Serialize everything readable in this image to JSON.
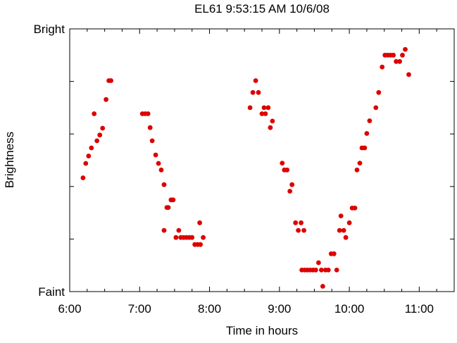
{
  "chart_data": {
    "type": "scatter",
    "title": "EL61 9:53:15 AM 10/6/08",
    "xlabel": "Time in hours",
    "ylabel": "Brightness",
    "x_unit": "hours",
    "xlim": [
      6.0,
      11.5
    ],
    "ylim": [
      0,
      1
    ],
    "x_ticks": [
      {
        "value": 6.0,
        "label": "6:00"
      },
      {
        "value": 7.0,
        "label": "7:00"
      },
      {
        "value": 8.0,
        "label": "8:00"
      },
      {
        "value": 9.0,
        "label": "9:00"
      },
      {
        "value": 10.0,
        "label": "10:00"
      },
      {
        "value": 11.0,
        "label": "11:00"
      }
    ],
    "x_minor_step": 0.25,
    "y_tick_labels": [
      {
        "value": 1,
        "label": "Bright"
      },
      {
        "value": 0,
        "label": "Faint"
      }
    ],
    "y_minor_ticks": [
      0.2,
      0.4,
      0.6,
      0.8
    ],
    "grid": false,
    "marker_color": "#dd0000",
    "points": [
      [
        6.19,
        0.433
      ],
      [
        6.23,
        0.488
      ],
      [
        6.27,
        0.516
      ],
      [
        6.31,
        0.547
      ],
      [
        6.35,
        0.677
      ],
      [
        6.39,
        0.574
      ],
      [
        6.43,
        0.596
      ],
      [
        6.47,
        0.622
      ],
      [
        6.52,
        0.731
      ],
      [
        6.56,
        0.803
      ],
      [
        6.59,
        0.803
      ],
      [
        7.04,
        0.677
      ],
      [
        7.08,
        0.677
      ],
      [
        7.12,
        0.677
      ],
      [
        7.15,
        0.624
      ],
      [
        7.18,
        0.574
      ],
      [
        7.23,
        0.52
      ],
      [
        7.27,
        0.488
      ],
      [
        7.31,
        0.463
      ],
      [
        7.35,
        0.407
      ],
      [
        7.39,
        0.32
      ],
      [
        7.41,
        0.32
      ],
      [
        7.45,
        0.349
      ],
      [
        7.48,
        0.349
      ],
      [
        7.35,
        0.233
      ],
      [
        7.52,
        0.206
      ],
      [
        7.56,
        0.233
      ],
      [
        7.59,
        0.206
      ],
      [
        7.63,
        0.206
      ],
      [
        7.67,
        0.206
      ],
      [
        7.71,
        0.206
      ],
      [
        7.75,
        0.206
      ],
      [
        7.79,
        0.179
      ],
      [
        7.83,
        0.179
      ],
      [
        7.87,
        0.179
      ],
      [
        7.86,
        0.262
      ],
      [
        7.91,
        0.206
      ],
      [
        8.58,
        0.7
      ],
      [
        8.62,
        0.758
      ],
      [
        8.66,
        0.803
      ],
      [
        8.7,
        0.758
      ],
      [
        8.75,
        0.677
      ],
      [
        8.78,
        0.7
      ],
      [
        8.8,
        0.677
      ],
      [
        8.84,
        0.7
      ],
      [
        8.87,
        0.624
      ],
      [
        8.9,
        0.649
      ],
      [
        9.04,
        0.489
      ],
      [
        9.07,
        0.463
      ],
      [
        9.11,
        0.463
      ],
      [
        9.15,
        0.382
      ],
      [
        9.18,
        0.407
      ],
      [
        9.23,
        0.262
      ],
      [
        9.27,
        0.233
      ],
      [
        9.31,
        0.262
      ],
      [
        9.35,
        0.233
      ],
      [
        9.32,
        0.082
      ],
      [
        9.36,
        0.082
      ],
      [
        9.4,
        0.082
      ],
      [
        9.44,
        0.082
      ],
      [
        9.48,
        0.082
      ],
      [
        9.52,
        0.082
      ],
      [
        9.56,
        0.11
      ],
      [
        9.6,
        0.082
      ],
      [
        9.62,
        0.02
      ],
      [
        9.66,
        0.082
      ],
      [
        9.7,
        0.082
      ],
      [
        9.74,
        0.144
      ],
      [
        9.78,
        0.144
      ],
      [
        9.82,
        0.082
      ],
      [
        9.86,
        0.233
      ],
      [
        9.88,
        0.288
      ],
      [
        9.92,
        0.233
      ],
      [
        9.95,
        0.206
      ],
      [
        10.0,
        0.262
      ],
      [
        10.04,
        0.318
      ],
      [
        10.08,
        0.318
      ],
      [
        10.11,
        0.463
      ],
      [
        10.15,
        0.489
      ],
      [
        10.18,
        0.547
      ],
      [
        10.22,
        0.547
      ],
      [
        10.25,
        0.602
      ],
      [
        10.29,
        0.65
      ],
      [
        10.38,
        0.7
      ],
      [
        10.42,
        0.758
      ],
      [
        10.47,
        0.855
      ],
      [
        10.51,
        0.9
      ],
      [
        10.55,
        0.9
      ],
      [
        10.59,
        0.9
      ],
      [
        10.63,
        0.9
      ],
      [
        10.67,
        0.876
      ],
      [
        10.72,
        0.876
      ],
      [
        10.76,
        0.9
      ],
      [
        10.8,
        0.922
      ],
      [
        10.85,
        0.826
      ]
    ]
  }
}
